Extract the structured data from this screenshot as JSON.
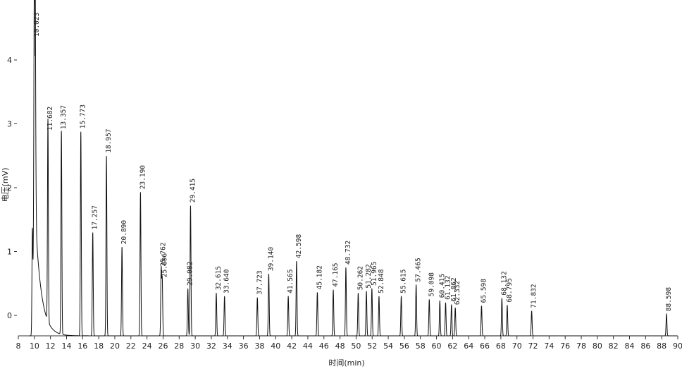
{
  "chart_data": {
    "type": "line",
    "xlabel": "时间(min)",
    "ylabel": "电压(mV)",
    "xlim": [
      8,
      90
    ],
    "ylim": [
      -0.3,
      4.8
    ],
    "grid": false,
    "x_ticks": [
      8,
      10,
      12,
      14,
      16,
      18,
      20,
      22,
      24,
      26,
      28,
      30,
      32,
      34,
      36,
      38,
      40,
      42,
      44,
      46,
      48,
      50,
      52,
      54,
      56,
      58,
      60,
      62,
      64,
      66,
      68,
      70,
      72,
      74,
      76,
      78,
      80,
      82,
      84,
      86,
      88,
      90
    ],
    "y_ticks": [
      0,
      1,
      2,
      3,
      4
    ],
    "baseline": -0.32,
    "peaks": [
      {
        "rt": 9.75,
        "height": 1.3,
        "label": ""
      },
      {
        "rt": 10.023,
        "height": 6.0,
        "label": "10.023"
      },
      {
        "rt": 11.682,
        "height": 2.85,
        "label": "11.682"
      },
      {
        "rt": 13.357,
        "height": 2.87,
        "label": "13.357"
      },
      {
        "rt": 15.773,
        "height": 2.88,
        "label": "15.773"
      },
      {
        "rt": 17.257,
        "height": 1.3,
        "label": "17.257"
      },
      {
        "rt": 18.957,
        "height": 2.5,
        "label": "18.957"
      },
      {
        "rt": 20.89,
        "height": 1.07,
        "label": "20.890"
      },
      {
        "rt": 23.19,
        "height": 1.93,
        "label": "23.190"
      },
      {
        "rt": 25.762,
        "height": 0.72,
        "label": "25.762"
      },
      {
        "rt": 25.896,
        "height": 0.55,
        "label": "25.896"
      },
      {
        "rt": 29.082,
        "height": 0.42,
        "label": "29.082"
      },
      {
        "rt": 29.415,
        "height": 1.72,
        "label": "29.415"
      },
      {
        "rt": 32.615,
        "height": 0.35,
        "label": "32.615"
      },
      {
        "rt": 33.64,
        "height": 0.3,
        "label": "33.640"
      },
      {
        "rt": 37.723,
        "height": 0.28,
        "label": "37.723"
      },
      {
        "rt": 39.14,
        "height": 0.65,
        "label": "39.140"
      },
      {
        "rt": 41.565,
        "height": 0.3,
        "label": "41.565"
      },
      {
        "rt": 42.598,
        "height": 0.85,
        "label": "42.598"
      },
      {
        "rt": 45.182,
        "height": 0.36,
        "label": "45.182"
      },
      {
        "rt": 47.165,
        "height": 0.4,
        "label": "47.165"
      },
      {
        "rt": 48.732,
        "height": 0.75,
        "label": "48.732"
      },
      {
        "rt": 50.262,
        "height": 0.35,
        "label": "50.262"
      },
      {
        "rt": 51.282,
        "height": 0.38,
        "label": "51.282"
      },
      {
        "rt": 51.965,
        "height": 0.42,
        "label": "51.965"
      },
      {
        "rt": 52.848,
        "height": 0.3,
        "label": "52.848"
      },
      {
        "rt": 55.615,
        "height": 0.3,
        "label": "55.615"
      },
      {
        "rt": 57.465,
        "height": 0.48,
        "label": "57.465"
      },
      {
        "rt": 59.098,
        "height": 0.25,
        "label": "59.098"
      },
      {
        "rt": 60.415,
        "height": 0.23,
        "label": "60.415"
      },
      {
        "rt": 61.132,
        "height": 0.2,
        "label": "61.132"
      },
      {
        "rt": 61.862,
        "height": 0.17,
        "label": "61.862"
      },
      {
        "rt": 62.332,
        "height": 0.12,
        "label": "62.332"
      },
      {
        "rt": 65.598,
        "height": 0.15,
        "label": "65.598"
      },
      {
        "rt": 68.132,
        "height": 0.27,
        "label": "68.132"
      },
      {
        "rt": 68.795,
        "height": 0.16,
        "label": "68.795"
      },
      {
        "rt": 71.832,
        "height": 0.07,
        "label": "71.832"
      },
      {
        "rt": 88.598,
        "height": 0.02,
        "label": "88.598"
      }
    ]
  }
}
